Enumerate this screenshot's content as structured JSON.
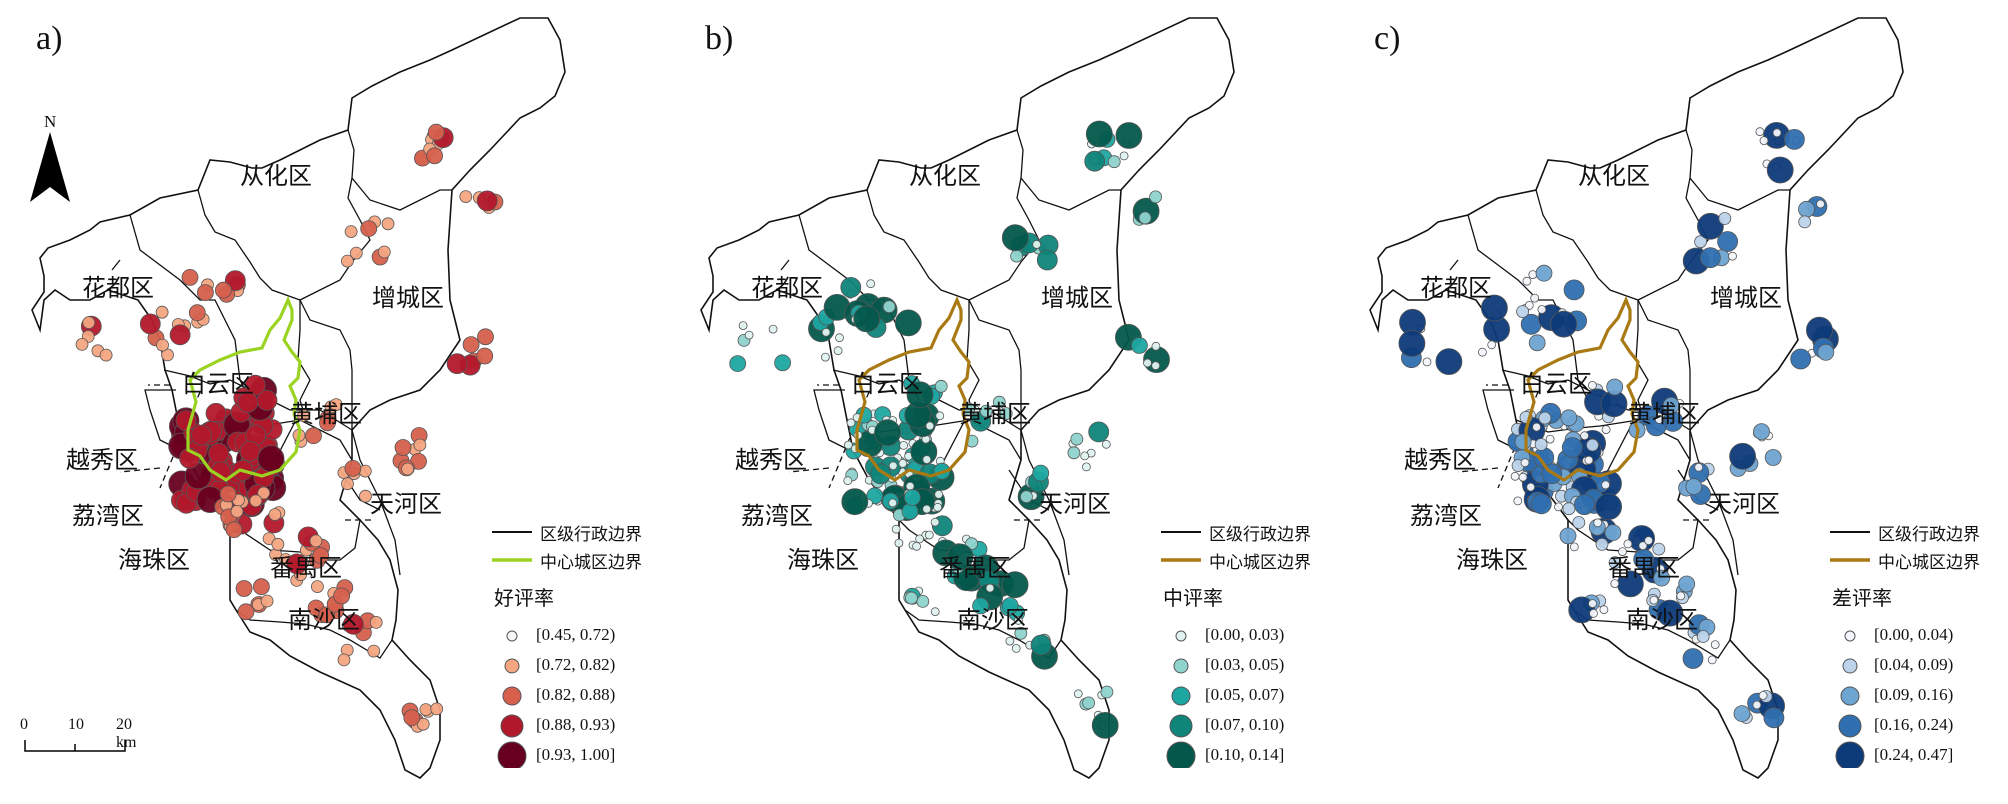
{
  "north_arrow": {
    "letter": "N"
  },
  "scale_bar": {
    "ticks": [
      "0",
      "10",
      "20 km"
    ]
  },
  "district_names": {
    "conghua": "从化区",
    "huadu": "花都区",
    "zengcheng": "增城区",
    "baiyun": "白云区",
    "huangpu": "黄埔区",
    "yuexiu": "越秀区",
    "tianhe": "天河区",
    "liwan": "荔湾区",
    "haizhu": "海珠区",
    "panyu": "番禺区",
    "nansha": "南沙区"
  },
  "legend_lines": {
    "district_boundary": "区级行政边界",
    "center_boundary": "中心城区边界"
  },
  "panels": [
    {
      "label": "a)",
      "legend_title": "好评率",
      "center_boundary_color": "#9ad321",
      "classes": [
        {
          "range": "[0.45, 0.72)",
          "color": "#f7f7f7"
        },
        {
          "range": "[0.72, 0.82)",
          "color": "#f4a582"
        },
        {
          "range": "[0.82, 0.88)",
          "color": "#d6604d"
        },
        {
          "range": "[0.88, 0.93)",
          "color": "#b2182b"
        },
        {
          "range": "[0.93, 1.00]",
          "color": "#67001f"
        }
      ]
    },
    {
      "label": "b)",
      "legend_title": "中评率",
      "center_boundary_color": "#a97914",
      "classes": [
        {
          "range": "[0.00, 0.03)",
          "color": "#e0f3f0"
        },
        {
          "range": "[0.03, 0.05)",
          "color": "#8fd3cd"
        },
        {
          "range": "[0.05, 0.07)",
          "color": "#1ea7a1"
        },
        {
          "range": "[0.07, 0.10)",
          "color": "#0f8479"
        },
        {
          "range": "[0.10, 0.14]",
          "color": "#03574b"
        }
      ]
    },
    {
      "label": "c)",
      "legend_title": "差评率",
      "center_boundary_color": "#a97914",
      "classes": [
        {
          "range": "[0.00, 0.04)",
          "color": "#f2f5fb"
        },
        {
          "range": "[0.04, 0.09)",
          "color": "#bcd3ea"
        },
        {
          "range": "[0.09, 0.16)",
          "color": "#6ea4d2"
        },
        {
          "range": "[0.16, 0.24)",
          "color": "#2f6fb0"
        },
        {
          "range": "[0.24, 0.47]",
          "color": "#0d3a78"
        }
      ]
    }
  ]
}
